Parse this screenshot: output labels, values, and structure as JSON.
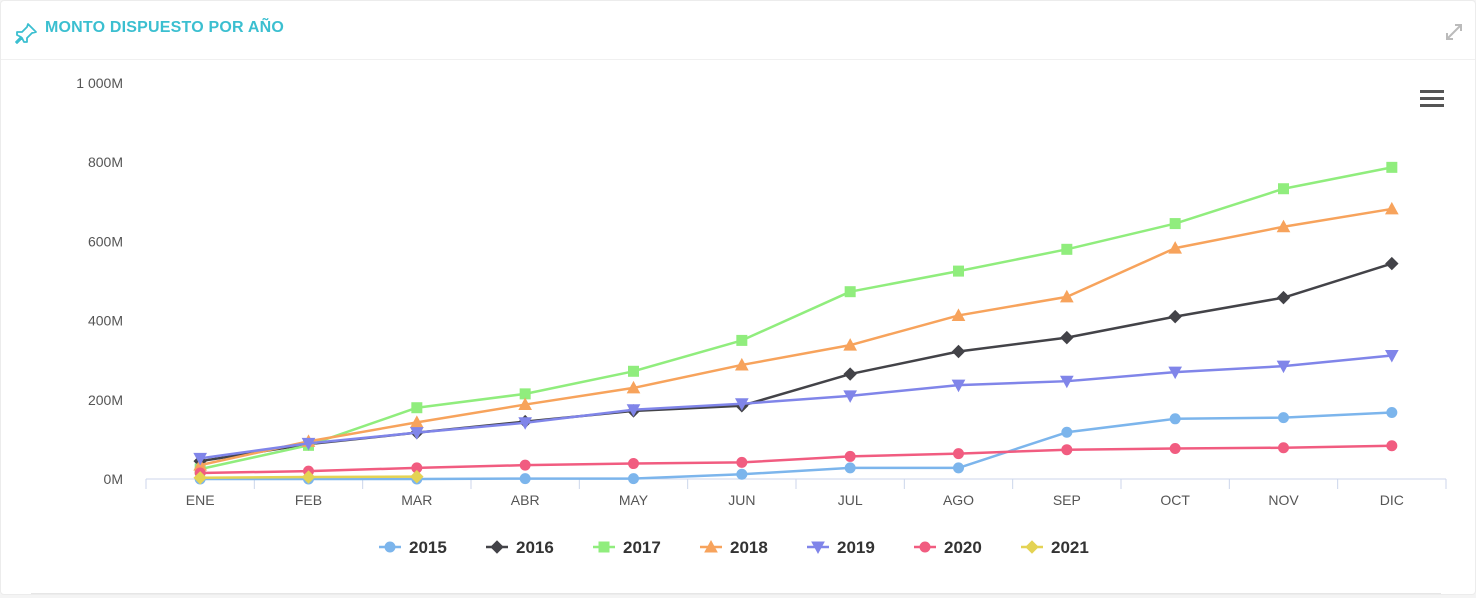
{
  "widget": {
    "title": "MONTO DISPUESTO POR AÑO",
    "pin_icon": "pin-icon",
    "expand_icon": "expand-icon",
    "menu_icon": "hamburger-menu-icon"
  },
  "chart_data": {
    "type": "line",
    "title": "MONTO DISPUESTO POR AÑO",
    "xlabel": "",
    "ylabel": "",
    "categories": [
      "ENE",
      "FEB",
      "MAR",
      "ABR",
      "MAY",
      "JUN",
      "JUL",
      "AGO",
      "SEP",
      "OCT",
      "NOV",
      "DIC"
    ],
    "y_ticks": [
      {
        "value": 0,
        "label": "0M"
      },
      {
        "value": 200,
        "label": "200M"
      },
      {
        "value": 400,
        "label": "400M"
      },
      {
        "value": 600,
        "label": "600M"
      },
      {
        "value": 800,
        "label": "800M"
      },
      {
        "value": 1000,
        "label": "1 000M"
      }
    ],
    "ylim": [
      0,
      1000
    ],
    "grid": false,
    "legend_position": "bottom-center",
    "series": [
      {
        "name": "2015",
        "color": "#7cb5ec",
        "marker": "circle",
        "values": [
          0,
          0,
          0,
          1,
          1,
          12,
          28,
          28,
          118,
          152,
          155,
          168
        ]
      },
      {
        "name": "2016",
        "color": "#434348",
        "marker": "diamond",
        "values": [
          45,
          88,
          117,
          145,
          172,
          185,
          265,
          322,
          357,
          410,
          458,
          544
        ]
      },
      {
        "name": "2017",
        "color": "#90ed7d",
        "marker": "square",
        "values": [
          25,
          85,
          180,
          215,
          272,
          350,
          473,
          525,
          580,
          645,
          733,
          787
        ]
      },
      {
        "name": "2018",
        "color": "#f7a35c",
        "marker": "triangle",
        "values": [
          35,
          95,
          143,
          188,
          230,
          288,
          338,
          413,
          460,
          583,
          637,
          682
        ]
      },
      {
        "name": "2019",
        "color": "#8085e9",
        "marker": "triangle-down",
        "values": [
          52,
          90,
          117,
          142,
          175,
          190,
          210,
          237,
          247,
          270,
          285,
          312
        ]
      },
      {
        "name": "2020",
        "color": "#f15c80",
        "marker": "circle",
        "values": [
          15,
          20,
          28,
          35,
          39,
          42,
          57,
          64,
          74,
          77,
          79,
          84
        ]
      },
      {
        "name": "2021",
        "color": "#e4d354",
        "marker": "diamond",
        "values": [
          3,
          5,
          6,
          null,
          null,
          null,
          null,
          null,
          null,
          null,
          null,
          null
        ]
      }
    ]
  }
}
